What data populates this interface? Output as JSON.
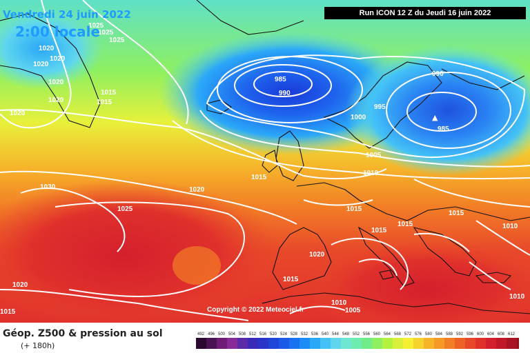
{
  "header": {
    "date": "Vendredi 24 juin 2022",
    "time": "2:00 locale",
    "run": "Run ICON 12 Z du Jeudi 16 juin 2022"
  },
  "copyright": "Copyright © 2022 Meteociel.fr",
  "footer": {
    "title": "Géop. Z500 & pression au sol",
    "subtitle": "(+ 180h)"
  },
  "legend": {
    "values": [
      "492",
      "496",
      "500",
      "504",
      "508",
      "512",
      "516",
      "520",
      "524",
      "528",
      "532",
      "536",
      "540",
      "544",
      "548",
      "552",
      "556",
      "560",
      "564",
      "568",
      "572",
      "576",
      "580",
      "584",
      "588",
      "592",
      "596",
      "600",
      "604",
      "608",
      "612"
    ],
    "colors": [
      "#2a0a2e",
      "#4a1453",
      "#6e1c78",
      "#8a2a98",
      "#5a2aa8",
      "#3a2ab8",
      "#2a34c8",
      "#1e46d8",
      "#1a5ae6",
      "#1a72f0",
      "#1e8cf6",
      "#2aa8f8",
      "#44c2f6",
      "#5fd6ee",
      "#6fe6d2",
      "#6cecae",
      "#70ec88",
      "#8ef060",
      "#b4f040",
      "#d8f038",
      "#f6ee30",
      "#f8d22c",
      "#f8b428",
      "#f69a26",
      "#f27e26",
      "#ee6228",
      "#e8482a",
      "#e0302c",
      "#d4202c",
      "#c01828",
      "#a81424",
      "#901020"
    ]
  },
  "map": {
    "isobar_labels": [
      {
        "text": "1025"
      },
      {
        "text": "1025"
      },
      {
        "text": "1025"
      },
      {
        "text": "1020"
      },
      {
        "text": "1020"
      },
      {
        "text": "1020"
      },
      {
        "text": "1020"
      },
      {
        "text": "1020"
      },
      {
        "text": "1015"
      },
      {
        "text": "1015"
      },
      {
        "text": "1020"
      },
      {
        "text": "985"
      },
      {
        "text": "990"
      },
      {
        "text": "990"
      },
      {
        "text": "995"
      },
      {
        "text": "1000"
      },
      {
        "text": "985"
      },
      {
        "text": "1005"
      },
      {
        "text": "1010"
      },
      {
        "text": "1015"
      },
      {
        "text": "1020"
      },
      {
        "text": "1030"
      },
      {
        "text": "1025"
      },
      {
        "text": "1015"
      },
      {
        "text": "1015"
      },
      {
        "text": "1015"
      },
      {
        "text": "1015"
      },
      {
        "text": "1010"
      },
      {
        "text": "1020"
      },
      {
        "text": "1015"
      },
      {
        "text": "1020"
      },
      {
        "text": "1015"
      },
      {
        "text": "1010"
      },
      {
        "text": "1005"
      },
      {
        "text": "1010"
      }
    ]
  }
}
